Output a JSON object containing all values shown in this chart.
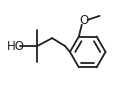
{
  "bg_color": "#ffffff",
  "line_color": "#222222",
  "line_width": 1.3,
  "text_color": "#222222",
  "font_size": 8.5
}
